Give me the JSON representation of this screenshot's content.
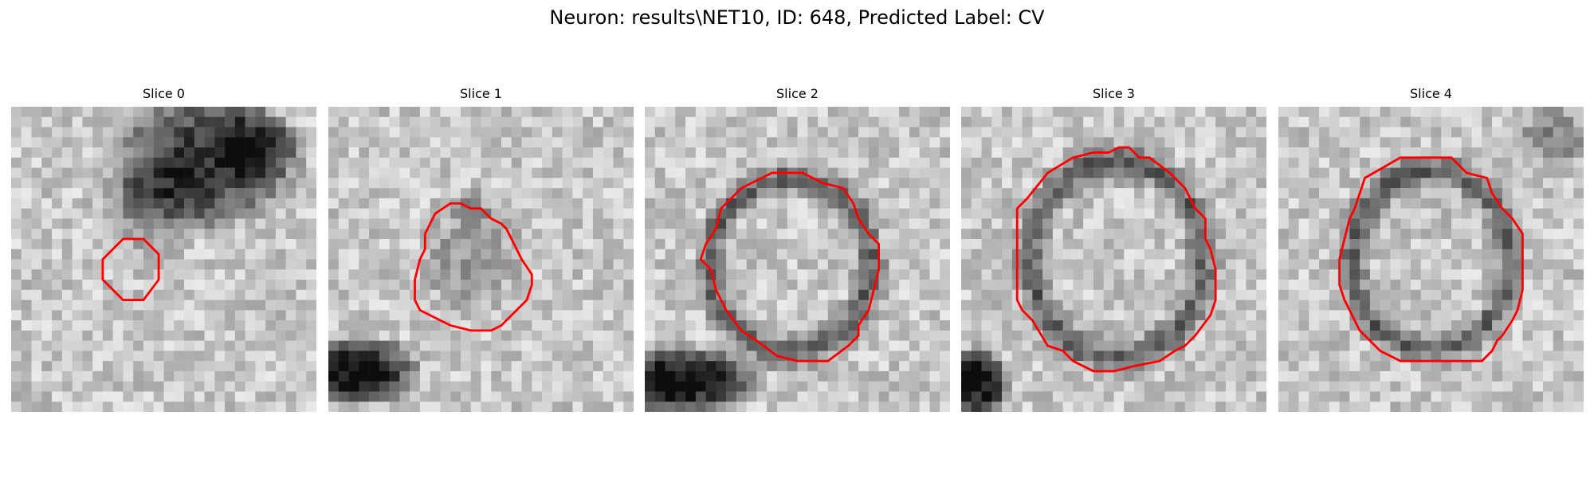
{
  "figure": {
    "title": "Neuron: results\\NET10, ID: 648, Predicted Label: CV",
    "contour_color": "#ff0000"
  },
  "panels": [
    {
      "title": "Slice 0"
    },
    {
      "title": "Slice 1"
    },
    {
      "title": "Slice 2"
    },
    {
      "title": "Slice 3"
    },
    {
      "title": "Slice 4"
    }
  ]
}
